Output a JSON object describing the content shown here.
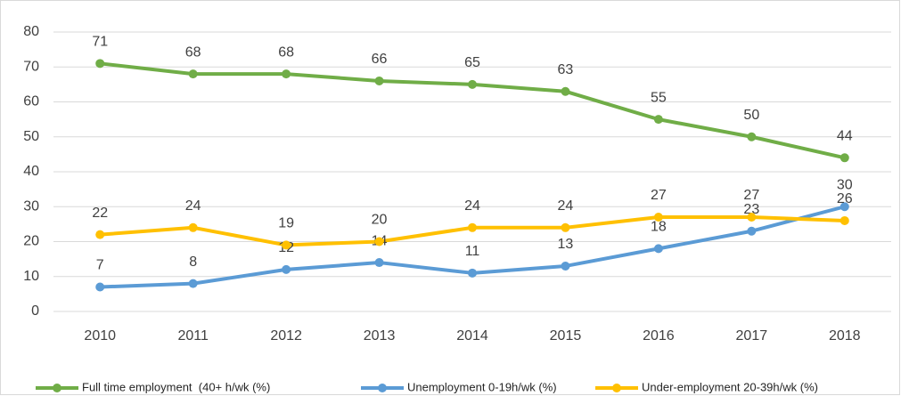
{
  "chart_data": {
    "type": "line",
    "categories": [
      "2010",
      "2011",
      "2012",
      "2013",
      "2014",
      "2015",
      "2016",
      "2017",
      "2018"
    ],
    "series": [
      {
        "name": "Full time employment  (40+ h/wk (%)",
        "color": "#70ad47",
        "values": [
          71,
          68,
          68,
          66,
          65,
          63,
          55,
          50,
          44
        ]
      },
      {
        "name": "Unemployment 0-19h/wk (%)",
        "color": "#5b9bd5",
        "values": [
          7,
          8,
          12,
          14,
          11,
          13,
          18,
          23,
          30
        ]
      },
      {
        "name": "Under-employment 20-39h/wk (%)",
        "color": "#ffc000",
        "values": [
          22,
          24,
          19,
          20,
          24,
          24,
          27,
          27,
          26
        ]
      }
    ],
    "ylim": [
      0,
      80
    ],
    "yticks": [
      0,
      10,
      20,
      30,
      40,
      50,
      60,
      70,
      80
    ],
    "grid": true,
    "legend": "bottom"
  }
}
